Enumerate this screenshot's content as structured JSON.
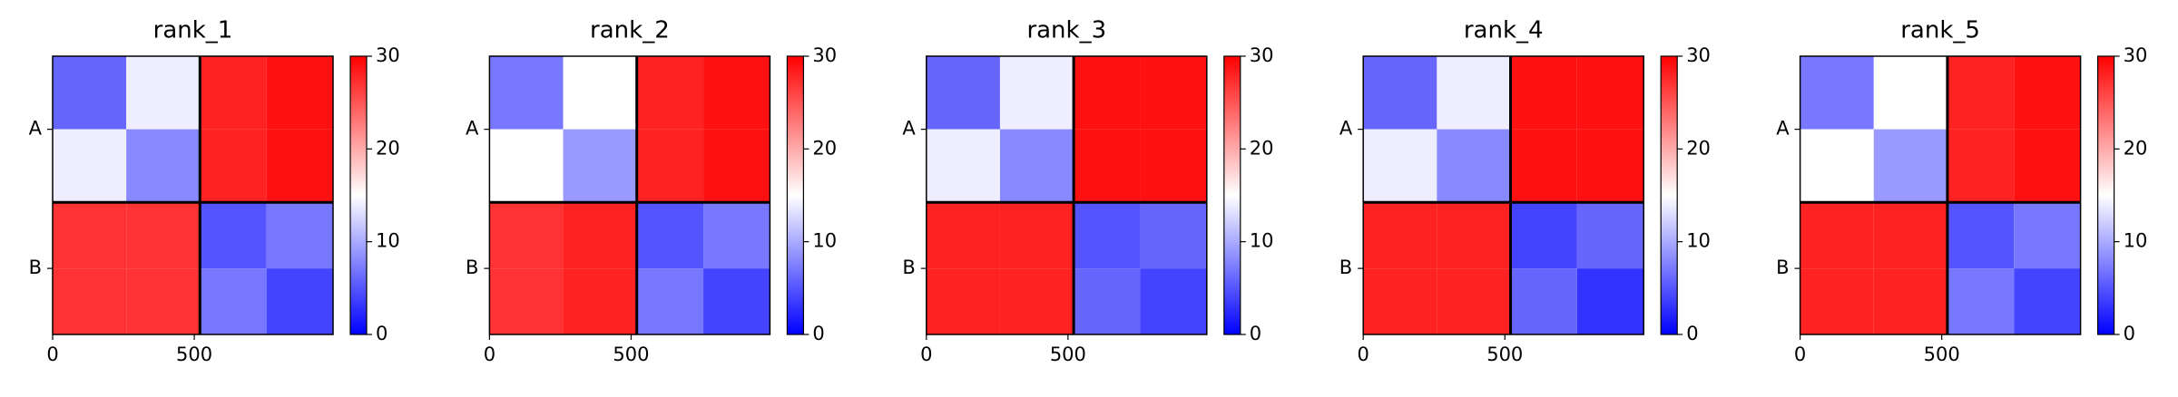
{
  "chart_data": [
    {
      "type": "heatmap",
      "title": "rank_1",
      "colormap": "bwr",
      "x_edges": [
        0,
        260,
        520,
        755,
        990
      ],
      "y_edges": [
        0,
        260,
        520,
        755,
        990
      ],
      "z": [
        [
          6,
          14,
          28,
          29
        ],
        [
          14,
          8,
          28,
          29
        ],
        [
          27,
          27,
          5,
          7
        ],
        [
          27,
          27,
          7,
          4
        ]
      ],
      "xlim": [
        0,
        990
      ],
      "ylim": [
        990,
        0
      ],
      "xticks": [
        0,
        500
      ],
      "yticks": [
        {
          "value": 260,
          "label": "A"
        },
        {
          "value": 755,
          "label": "B"
        }
      ],
      "zlim": [
        0,
        30
      ],
      "colorbar_ticks": [
        0,
        10,
        20,
        30
      ],
      "chain_breaks": [
        520
      ]
    },
    {
      "type": "heatmap",
      "title": "rank_2",
      "colormap": "bwr",
      "x_edges": [
        0,
        260,
        520,
        755,
        990
      ],
      "y_edges": [
        0,
        260,
        520,
        755,
        990
      ],
      "z": [
        [
          7,
          15,
          28,
          29
        ],
        [
          15,
          9,
          28,
          29
        ],
        [
          27,
          28,
          5,
          7
        ],
        [
          27,
          28,
          7,
          4
        ]
      ],
      "xlim": [
        0,
        990
      ],
      "ylim": [
        990,
        0
      ],
      "xticks": [
        0,
        500
      ],
      "yticks": [
        {
          "value": 260,
          "label": "A"
        },
        {
          "value": 755,
          "label": "B"
        }
      ],
      "zlim": [
        0,
        30
      ],
      "colorbar_ticks": [
        0,
        10,
        20,
        30
      ],
      "chain_breaks": [
        520
      ]
    },
    {
      "type": "heatmap",
      "title": "rank_3",
      "colormap": "bwr",
      "x_edges": [
        0,
        260,
        520,
        755,
        990
      ],
      "y_edges": [
        0,
        260,
        520,
        755,
        990
      ],
      "z": [
        [
          6,
          14,
          29,
          29
        ],
        [
          14,
          8,
          29,
          29
        ],
        [
          28,
          28,
          5,
          6
        ],
        [
          28,
          28,
          6,
          4
        ]
      ],
      "xlim": [
        0,
        990
      ],
      "ylim": [
        990,
        0
      ],
      "xticks": [
        0,
        500
      ],
      "yticks": [
        {
          "value": 260,
          "label": "A"
        },
        {
          "value": 755,
          "label": "B"
        }
      ],
      "zlim": [
        0,
        30
      ],
      "colorbar_ticks": [
        0,
        10,
        20,
        30
      ],
      "chain_breaks": [
        520
      ]
    },
    {
      "type": "heatmap",
      "title": "rank_4",
      "colormap": "bwr",
      "x_edges": [
        0,
        260,
        520,
        755,
        990
      ],
      "y_edges": [
        0,
        260,
        520,
        755,
        990
      ],
      "z": [
        [
          6,
          14,
          29,
          29
        ],
        [
          14,
          8,
          29,
          29
        ],
        [
          28,
          28,
          4,
          6
        ],
        [
          28,
          28,
          6,
          3
        ]
      ],
      "xlim": [
        0,
        990
      ],
      "ylim": [
        990,
        0
      ],
      "xticks": [
        0,
        500
      ],
      "yticks": [
        {
          "value": 260,
          "label": "A"
        },
        {
          "value": 755,
          "label": "B"
        }
      ],
      "zlim": [
        0,
        30
      ],
      "colorbar_ticks": [
        0,
        10,
        20,
        30
      ],
      "chain_breaks": [
        520
      ]
    },
    {
      "type": "heatmap",
      "title": "rank_5",
      "colormap": "bwr",
      "x_edges": [
        0,
        260,
        520,
        755,
        990
      ],
      "y_edges": [
        0,
        260,
        520,
        755,
        990
      ],
      "z": [
        [
          7,
          15,
          28,
          29
        ],
        [
          15,
          9,
          28,
          29
        ],
        [
          28,
          28,
          5,
          7
        ],
        [
          28,
          28,
          7,
          4
        ]
      ],
      "xlim": [
        0,
        990
      ],
      "ylim": [
        990,
        0
      ],
      "xticks": [
        0,
        500
      ],
      "yticks": [
        {
          "value": 260,
          "label": "A"
        },
        {
          "value": 755,
          "label": "B"
        }
      ],
      "zlim": [
        0,
        30
      ],
      "colorbar_ticks": [
        0,
        10,
        20,
        30
      ],
      "chain_breaks": [
        520
      ]
    }
  ]
}
